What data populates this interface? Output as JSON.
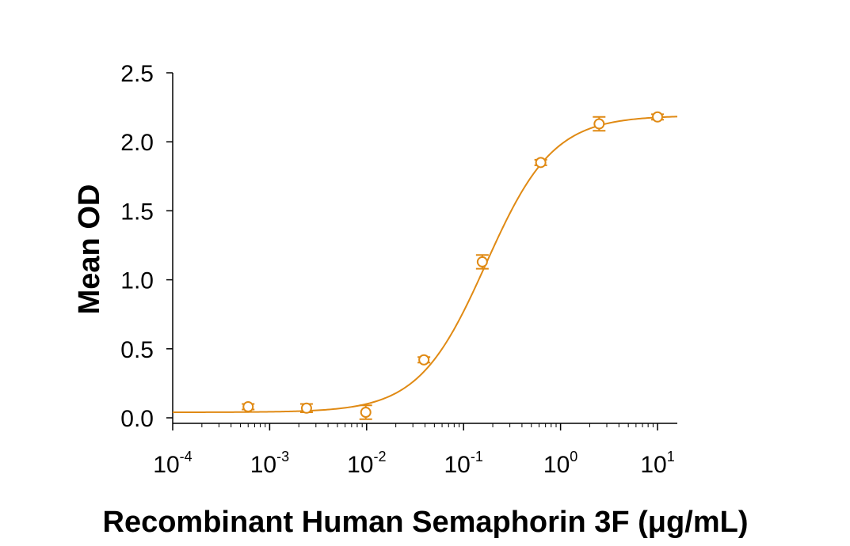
{
  "chart_data": {
    "type": "scatter",
    "xlabel": "Recombinant Human Semaphorin 3F (μg/mL)",
    "ylabel": "Mean OD",
    "x_scale": "log",
    "xlim": [
      0.0001,
      16
    ],
    "ylim": [
      0,
      2.5
    ],
    "x_ticks": [
      {
        "base": "10",
        "exp": "-4",
        "value": 0.0001
      },
      {
        "base": "10",
        "exp": "-3",
        "value": 0.001
      },
      {
        "base": "10",
        "exp": "-2",
        "value": 0.01
      },
      {
        "base": "10",
        "exp": "-1",
        "value": 0.1
      },
      {
        "base": "10",
        "exp": "0",
        "value": 1
      },
      {
        "base": "10",
        "exp": "1",
        "value": 10
      }
    ],
    "y_ticks": [
      "0.0",
      "0.5",
      "1.0",
      "1.5",
      "2.0",
      "2.5"
    ],
    "grid": false,
    "color": "#E08A14",
    "series": [
      {
        "points": [
          {
            "x": 0.0006,
            "y": 0.08,
            "err": 0.02
          },
          {
            "x": 0.0024,
            "y": 0.07,
            "err": 0.03
          },
          {
            "x": 0.0098,
            "y": 0.04,
            "err": 0.05
          },
          {
            "x": 0.039,
            "y": 0.42,
            "err": 0.02
          },
          {
            "x": 0.156,
            "y": 1.13,
            "err": 0.05
          },
          {
            "x": 0.625,
            "y": 1.85,
            "err": 0.02
          },
          {
            "x": 2.5,
            "y": 2.13,
            "err": 0.05
          },
          {
            "x": 10,
            "y": 2.18,
            "err": 0.02
          }
        ],
        "fit": {
          "model": "4PL",
          "bottom": 0.04,
          "top": 2.19,
          "ec50": 0.17,
          "hill": 1.25
        }
      }
    ]
  }
}
